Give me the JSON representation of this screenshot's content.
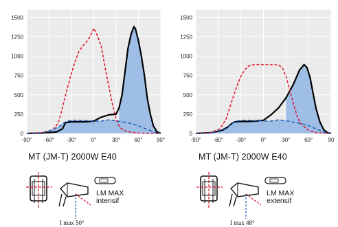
{
  "colors": {
    "plot_bg": "#ebebeb",
    "grid": "#ffffff",
    "black_curve": "#000000",
    "red_curve": "#e0102a",
    "blue_curve": "#1e5fb8",
    "blue_fill": "#9ebee6"
  },
  "chart_data": [
    {
      "type": "line",
      "x_ticks": [
        "-90°",
        "-60°",
        "-30°",
        "0°",
        "30°",
        "60°",
        "90°"
      ],
      "y_ticks": [
        "0",
        "250",
        "500",
        "750",
        "1000",
        "1250",
        "1500"
      ],
      "xlim": [
        -90,
        90
      ],
      "ylim": [
        0,
        1600
      ],
      "grid": true,
      "caption": "MT (JM-T) 2000W E40",
      "lm_label": [
        "LM MAX",
        "intensif"
      ],
      "imax_label": "I max 50°",
      "series": [
        {
          "style": "black-solid",
          "x": [
            -90,
            -70,
            -50,
            -42,
            -38,
            -30,
            -20,
            -10,
            0,
            10,
            20,
            30,
            34,
            38,
            42,
            46,
            50,
            54,
            56,
            60,
            64,
            68,
            72,
            76,
            80,
            85,
            90
          ],
          "y": [
            0,
            5,
            20,
            60,
            140,
            150,
            150,
            150,
            160,
            210,
            240,
            250,
            330,
            500,
            800,
            1100,
            1280,
            1380,
            1350,
            1200,
            1000,
            750,
            450,
            250,
            100,
            20,
            0
          ]
        },
        {
          "style": "red-dashed",
          "x": [
            -90,
            -70,
            -55,
            -48,
            -44,
            -40,
            -35,
            -30,
            -25,
            -20,
            -15,
            -10,
            -5,
            0,
            5,
            10,
            15,
            20,
            25,
            30,
            35,
            40,
            50,
            60,
            75,
            90
          ],
          "y": [
            0,
            10,
            50,
            130,
            260,
            420,
            600,
            780,
            930,
            1060,
            1130,
            1180,
            1250,
            1360,
            1260,
            1130,
            860,
            620,
            380,
            180,
            80,
            40,
            15,
            5,
            0,
            0
          ]
        },
        {
          "style": "blue-dashed-filled",
          "x": [
            -90,
            -70,
            -55,
            -45,
            -40,
            -35,
            -30,
            -20,
            -10,
            0,
            10,
            20,
            30,
            40,
            50,
            60,
            70,
            80,
            90
          ],
          "y": [
            0,
            5,
            50,
            100,
            140,
            160,
            170,
            170,
            165,
            160,
            160,
            175,
            165,
            145,
            130,
            100,
            60,
            20,
            0
          ]
        }
      ]
    },
    {
      "type": "line",
      "x_ticks": [
        "-90°",
        "-60°",
        "-30°",
        "0°",
        "30°",
        "60°",
        "90"
      ],
      "y_ticks": [
        "0",
        "250",
        "500",
        "750",
        "1000",
        "1250",
        "1500"
      ],
      "xlim": [
        -90,
        90
      ],
      "ylim": [
        0,
        1600
      ],
      "grid": true,
      "caption": "MT (JM-T) 2000W E40",
      "lm_label": [
        "LM MAX",
        "extensif"
      ],
      "imax_label": "I max 48°",
      "series": [
        {
          "style": "black-solid",
          "x": [
            -90,
            -70,
            -55,
            -48,
            -42,
            -38,
            -30,
            -20,
            -10,
            0,
            10,
            20,
            30,
            40,
            48,
            54,
            58,
            62,
            66,
            70,
            75,
            80,
            85,
            90
          ],
          "y": [
            0,
            10,
            40,
            80,
            130,
            150,
            155,
            155,
            160,
            170,
            240,
            330,
            460,
            640,
            820,
            890,
            850,
            720,
            520,
            320,
            150,
            50,
            10,
            0
          ]
        },
        {
          "style": "red-dashed",
          "x": [
            -90,
            -70,
            -58,
            -50,
            -45,
            -40,
            -35,
            -30,
            -25,
            -20,
            -15,
            -10,
            0,
            10,
            20,
            25,
            30,
            35,
            40,
            45,
            50,
            60,
            70,
            90
          ],
          "y": [
            0,
            10,
            60,
            180,
            330,
            480,
            620,
            740,
            820,
            870,
            885,
            890,
            890,
            890,
            885,
            850,
            740,
            560,
            380,
            220,
            120,
            40,
            10,
            0
          ]
        },
        {
          "style": "blue-dashed-filled",
          "x": [
            -90,
            -70,
            -55,
            -45,
            -40,
            -35,
            -30,
            -20,
            -10,
            0,
            10,
            20,
            30,
            40,
            50,
            60,
            70,
            80,
            90
          ],
          "y": [
            0,
            5,
            50,
            100,
            140,
            160,
            170,
            170,
            165,
            160,
            160,
            175,
            165,
            145,
            130,
            100,
            60,
            20,
            0
          ]
        }
      ]
    }
  ]
}
